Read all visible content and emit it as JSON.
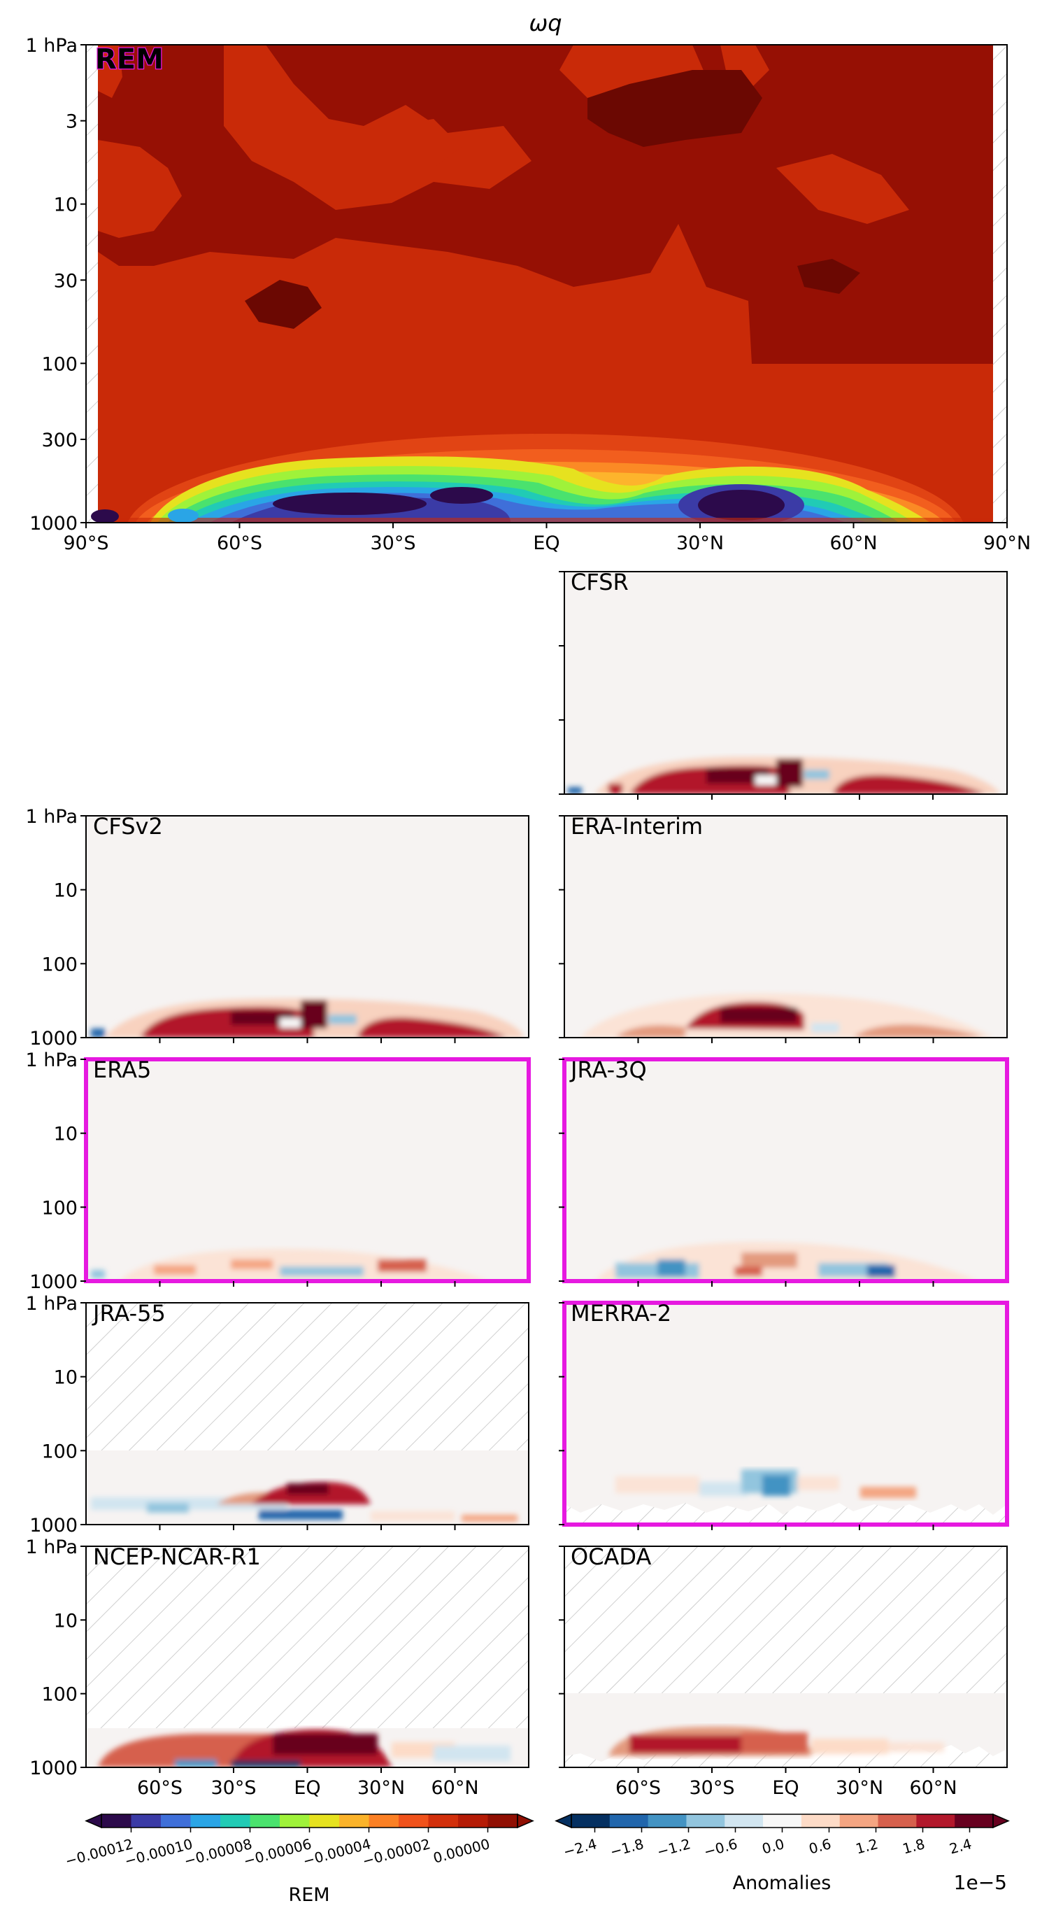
{
  "chart_data": {
    "type": "heatmap",
    "title": "ωq",
    "x_ticks": [
      "90°S",
      "60°S",
      "30°S",
      "EQ",
      "30°N",
      "60°N",
      "90°N"
    ],
    "x_ticks_small": [
      "60°S",
      "30°S",
      "EQ",
      "30°N",
      "60°N"
    ],
    "y_ticks_main": [
      "1 hPa",
      "3",
      "10",
      "30",
      "100",
      "300",
      "1000"
    ],
    "y_ticks_small": [
      "1 hPa",
      "10",
      "100",
      "1000"
    ],
    "xlim": [
      -90,
      90
    ],
    "ylim_hpa": [
      1000,
      1
    ],
    "y_scale": "log",
    "panels": [
      {
        "label": "REM",
        "highlight": false,
        "hatch_top_hpa": null
      },
      {
        "label": "CFSR",
        "highlight": false,
        "hatch_top_hpa": null
      },
      {
        "label": "CFSv2",
        "highlight": false,
        "hatch_top_hpa": null
      },
      {
        "label": "ERA-Interim",
        "highlight": false,
        "hatch_top_hpa": null
      },
      {
        "label": "ERA5",
        "highlight": true,
        "hatch_top_hpa": null
      },
      {
        "label": "JRA-3Q",
        "highlight": true,
        "hatch_top_hpa": null
      },
      {
        "label": "JRA-55",
        "highlight": false,
        "hatch_top_hpa": 100
      },
      {
        "label": "MERRA-2",
        "highlight": true,
        "hatch_top_hpa": null
      },
      {
        "label": "NCEP-NCAR-R1",
        "highlight": false,
        "hatch_top_hpa": 300
      },
      {
        "label": "OCADA",
        "highlight": false,
        "hatch_top_hpa": 100
      }
    ],
    "colorbar_rem": {
      "label": "REM",
      "ticks": [
        "−0.00012",
        "−0.00010",
        "−0.00008",
        "−0.00006",
        "−0.00004",
        "−0.00002",
        "0.00000"
      ],
      "range": [
        -0.00013,
        1e-05
      ],
      "colors": [
        "#2c0a4b",
        "#3b3ba6",
        "#3f6fd9",
        "#2aa5e6",
        "#21cbb5",
        "#4ae26e",
        "#9ff23a",
        "#e6e21f",
        "#fbb32a",
        "#fb8024",
        "#f0521b",
        "#d22f0b",
        "#b51b06",
        "#900f03"
      ]
    },
    "colorbar_anom": {
      "label": "Anomalies",
      "ticks": [
        "−2.4",
        "−1.8",
        "−1.2",
        "−0.6",
        "0.0",
        "0.6",
        "1.2",
        "1.8",
        "2.4"
      ],
      "scale_label": "1e−5",
      "range": [
        -2.7,
        2.7
      ],
      "colors": [
        "#053061",
        "#2166ac",
        "#4393c3",
        "#92c5de",
        "#d1e5f0",
        "#f7f7f7",
        "#fddbc7",
        "#f4a582",
        "#d6604d",
        "#b2182b",
        "#67001f"
      ]
    },
    "highlight_color": "#e619e0"
  }
}
